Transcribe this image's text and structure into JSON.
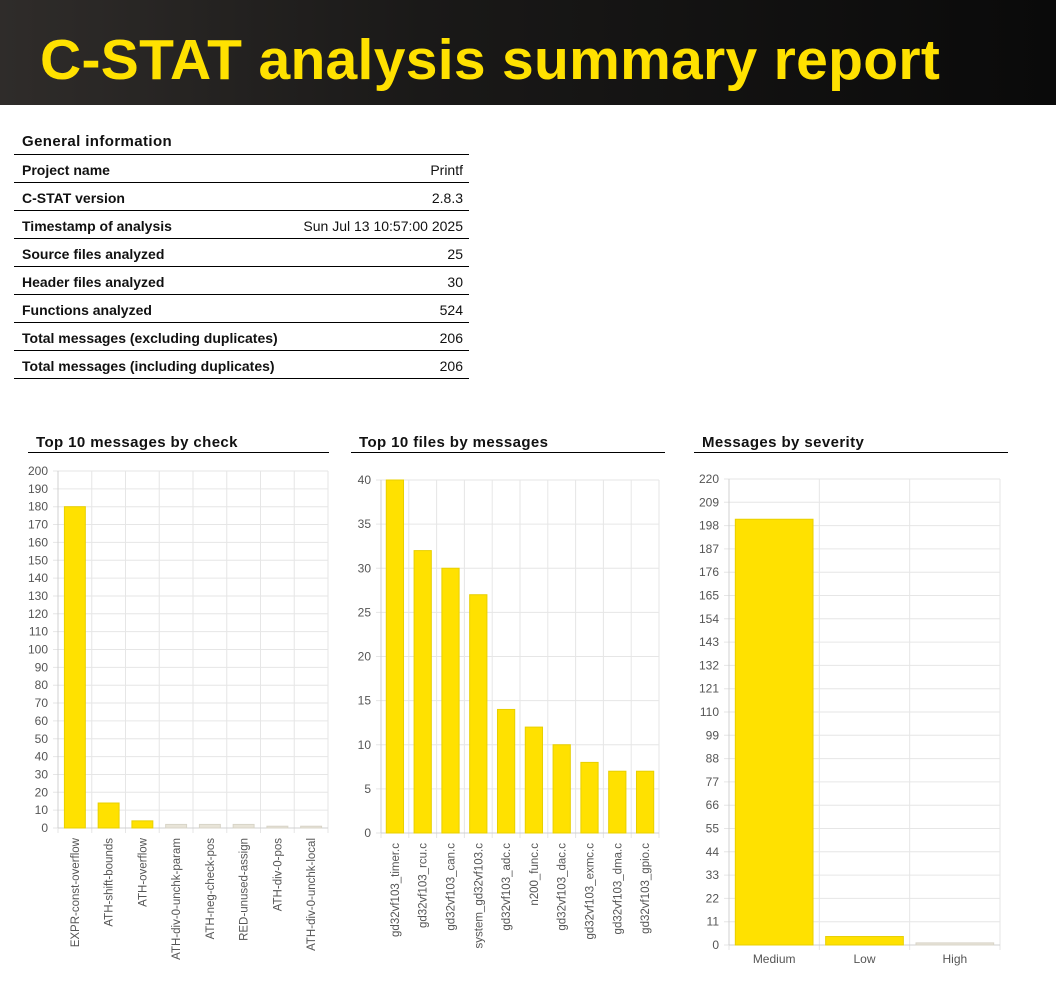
{
  "header": {
    "title": "C-STAT analysis summary report"
  },
  "general": {
    "heading": "General information",
    "rows": [
      {
        "label": "Project name",
        "value": "Printf"
      },
      {
        "label": "C-STAT version",
        "value": "2.8.3"
      },
      {
        "label": "Timestamp of analysis",
        "value": "Sun Jul 13 10:57:00 2025"
      },
      {
        "label": "Source files analyzed",
        "value": "25"
      },
      {
        "label": "Header files analyzed",
        "value": "30"
      },
      {
        "label": "Functions analyzed",
        "value": "524"
      },
      {
        "label": "Total messages (excluding duplicates)",
        "value": "206"
      },
      {
        "label": "Total messages (including duplicates)",
        "value": "206"
      }
    ]
  },
  "colors": {
    "bar": "#ffe100",
    "bar_border": "#e8d000",
    "faint_bar": "#e8e4d8",
    "grid": "#e6e6e6",
    "banner_text": "#ffe100"
  },
  "chart_data": [
    {
      "type": "bar",
      "title": "Top 10 messages by check",
      "categories": [
        "EXPR-const-overflow",
        "ATH-shift-bounds",
        "ATH-overflow",
        "ATH-div-0-unchk-param",
        "ATH-neg-check-pos",
        "RED-unused-assign",
        "ATH-div-0-pos",
        "ATH-div-0-unchk-local"
      ],
      "values": [
        180,
        14,
        4,
        2,
        2,
        2,
        1,
        1
      ],
      "ylim": [
        0,
        200
      ],
      "yticks": [
        0,
        10,
        20,
        30,
        40,
        50,
        60,
        70,
        80,
        90,
        100,
        110,
        120,
        130,
        140,
        150,
        160,
        170,
        180,
        190,
        200
      ],
      "grid": true
    },
    {
      "type": "bar",
      "title": "Top 10 files by messages",
      "categories": [
        "gd32vf103_timer.c",
        "gd32vf103_rcu.c",
        "gd32vf103_can.c",
        "system_gd32vf103.c",
        "gd32vf103_adc.c",
        "n200_func.c",
        "gd32vf103_dac.c",
        "gd32vf103_exmc.c",
        "gd32vf103_dma.c",
        "gd32vf103_gpio.c"
      ],
      "values": [
        40,
        32,
        30,
        27,
        14,
        12,
        10,
        8,
        7,
        7
      ],
      "ylim": [
        0,
        40
      ],
      "yticks": [
        0,
        5,
        10,
        15,
        20,
        25,
        30,
        35,
        40
      ],
      "grid": true
    },
    {
      "type": "bar",
      "title": "Messages by severity",
      "categories": [
        "Medium",
        "Low",
        "High"
      ],
      "values": [
        201,
        4,
        1
      ],
      "ylim": [
        0,
        220
      ],
      "yticks": [
        0,
        11,
        22,
        33,
        44,
        55,
        66,
        77,
        88,
        99,
        110,
        121,
        132,
        143,
        154,
        165,
        176,
        187,
        198,
        209,
        220
      ],
      "grid": true
    }
  ]
}
